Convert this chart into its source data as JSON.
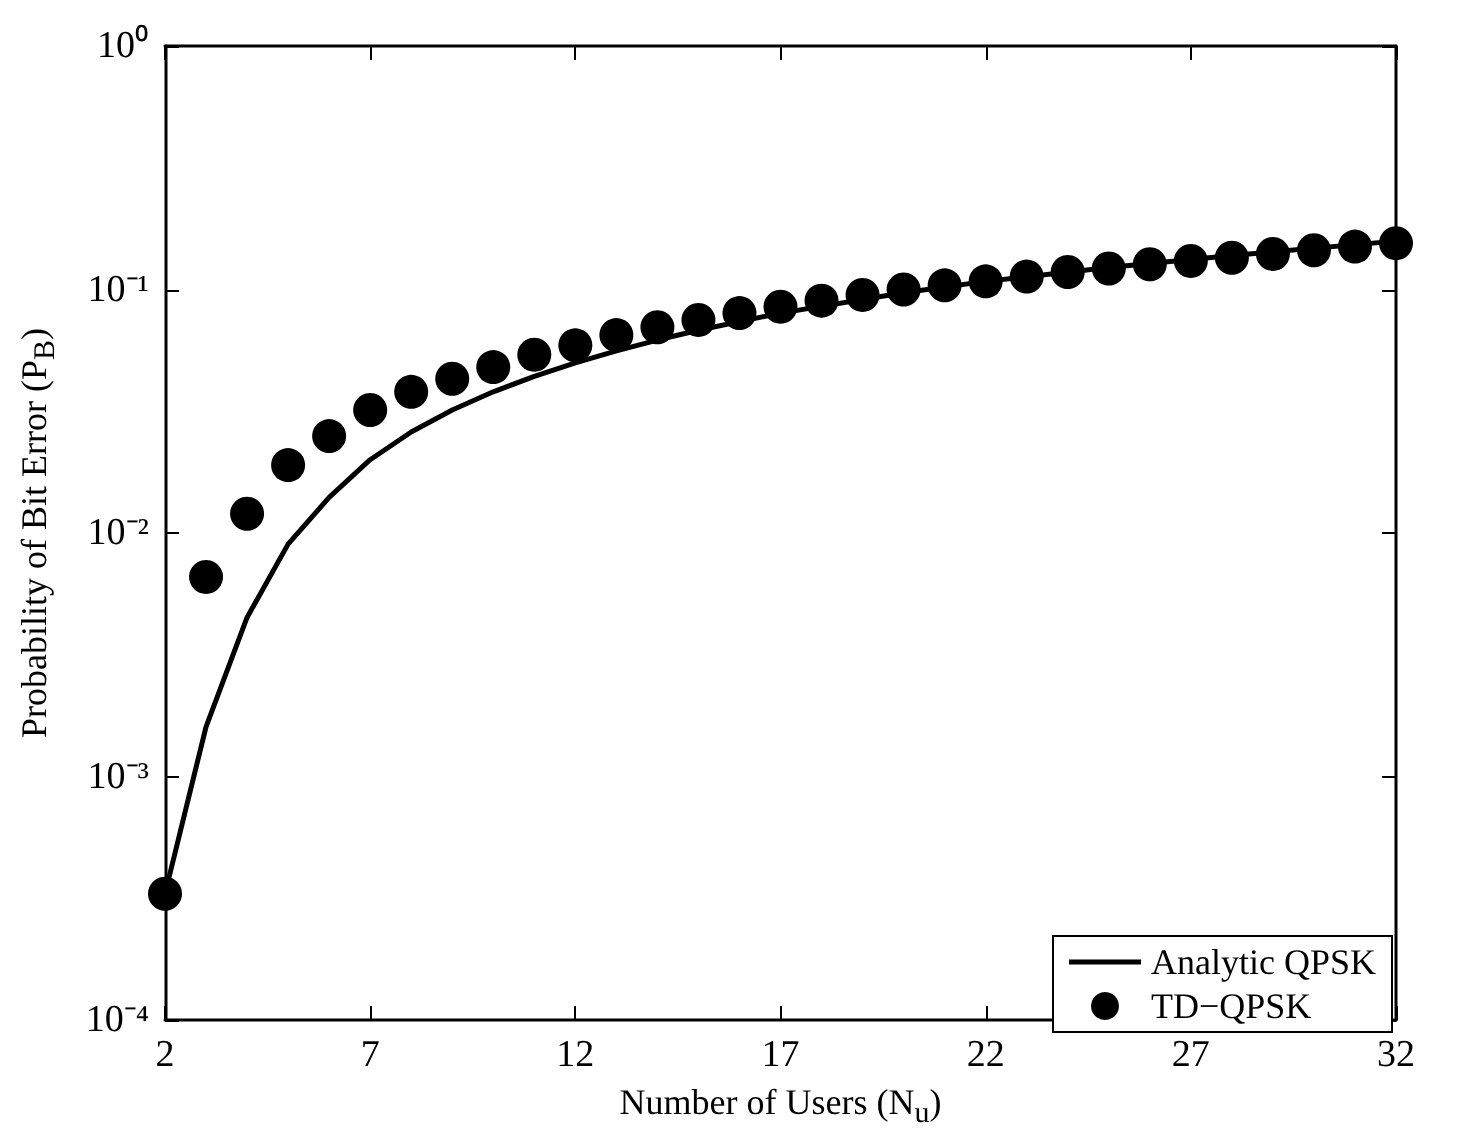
{
  "chart_data": {
    "type": "line",
    "xlabel": "Number of Users (N$_{u}$)",
    "ylabel": "Probability of Bit Error (P$_{B}$)",
    "log": "y",
    "xlim": [
      2,
      32
    ],
    "xticks": [
      2,
      7,
      12,
      17,
      22,
      27,
      32
    ],
    "ylim": [
      0.0001,
      1
    ],
    "yticks": [
      {
        "value": 0.0001,
        "label": "10⁻⁴"
      },
      {
        "value": 0.001,
        "label": "10⁻³"
      },
      {
        "value": 0.01,
        "label": "10⁻²"
      },
      {
        "value": 0.1,
        "label": "10⁻¹"
      },
      {
        "value": 1,
        "label": "10⁰"
      }
    ],
    "grid": false,
    "legend": "bottom right",
    "series": [
      {
        "name": "Analytic QPSK",
        "color": "#000000",
        "marker": "none",
        "line_style": "solid",
        "x": [
          2,
          3,
          4,
          5,
          6,
          7,
          8,
          9,
          10,
          11,
          12,
          13,
          14,
          15,
          17,
          20,
          22,
          25,
          28,
          32
        ],
        "values": [
          0.00033,
          0.0016,
          0.0045,
          0.009,
          0.014,
          0.02,
          0.026,
          0.032,
          0.038,
          0.044,
          0.05,
          0.056,
          0.062,
          0.068,
          0.08,
          0.097,
          0.108,
          0.123,
          0.138,
          0.158
        ]
      },
      {
        "name": "TD−QPSK",
        "type": "scatter",
        "color": "#000000",
        "marker": "circle",
        "x": [
          2,
          3,
          4,
          5,
          6,
          7,
          8,
          9,
          10,
          11,
          12,
          13,
          14,
          15,
          16,
          17,
          18,
          19,
          20,
          21,
          22,
          23,
          24,
          25,
          26,
          27,
          28,
          29,
          30,
          31,
          32
        ],
        "values": [
          0.00033,
          0.0066,
          0.012,
          0.019,
          0.025,
          0.032,
          0.038,
          0.043,
          0.048,
          0.054,
          0.059,
          0.065,
          0.07,
          0.075,
          0.08,
          0.085,
          0.09,
          0.095,
          0.1,
          0.104,
          0.108,
          0.113,
          0.118,
          0.122,
          0.127,
          0.131,
          0.135,
          0.14,
          0.145,
          0.15,
          0.155
        ]
      }
    ]
  }
}
